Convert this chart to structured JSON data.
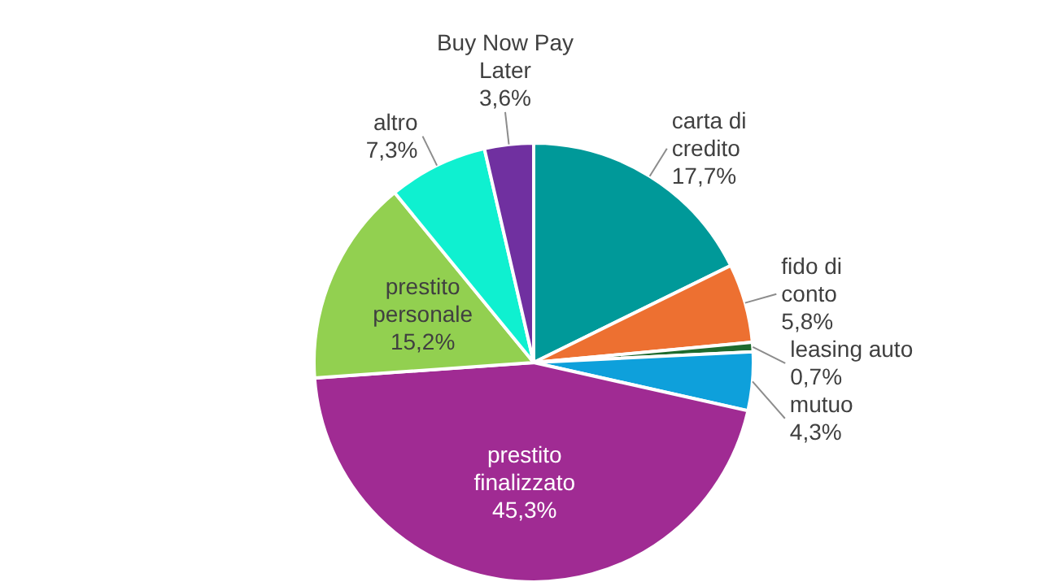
{
  "chart_data": {
    "type": "pie",
    "categories": [
      "carta di credito",
      "fido di conto",
      "leasing auto",
      "mutuo",
      "prestito finalizzato",
      "prestito personale",
      "altro",
      "Buy Now Pay Later"
    ],
    "values": [
      17.7,
      5.8,
      0.7,
      4.3,
      45.3,
      15.2,
      7.3,
      3.6
    ],
    "value_labels": [
      "17,7%",
      "5,8%",
      "0,7%",
      "4,3%",
      "45,3%",
      "15,2%",
      "7,3%",
      "3,6%"
    ],
    "colors": [
      "#009999",
      "#ed7031",
      "#1e6b2e",
      "#0ea0db",
      "#a02b93",
      "#92d050",
      "#0ff0d0",
      "#7030a0"
    ],
    "legend": false
  }
}
